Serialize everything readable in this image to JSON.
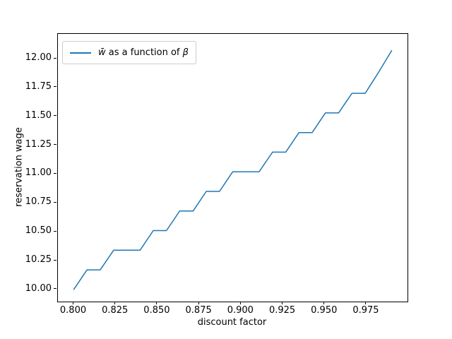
{
  "chart_data": {
    "type": "line",
    "title": "",
    "xlabel": "discount factor",
    "ylabel": "reservation wage",
    "grid": false,
    "background_color": "#ffffff",
    "line_color": "#1f77b4",
    "xlim": [
      0.7905,
      0.9995
    ],
    "ylim": [
      9.895,
      12.215
    ],
    "x_ticks": [
      "0.800",
      "0.825",
      "0.850",
      "0.875",
      "0.900",
      "0.925",
      "0.950",
      "0.975"
    ],
    "y_ticks": [
      "10.00",
      "10.25",
      "10.50",
      "10.75",
      "11.00",
      "11.25",
      "11.50",
      "11.75",
      "12.00"
    ],
    "legend": {
      "position": "upper left",
      "label_full": "w̄ as a function of β",
      "label_pre": "w̄",
      "label_mid": " as a function of ",
      "label_post": "β",
      "handle_color": "#1f77b4"
    },
    "series": [
      {
        "name": "w̄ as a function of β",
        "color": "#1f77b4",
        "x": [
          0.8,
          0.8079,
          0.8158,
          0.8238,
          0.8317,
          0.8396,
          0.8475,
          0.8554,
          0.8633,
          0.8713,
          0.8792,
          0.8871,
          0.895,
          0.9029,
          0.9108,
          0.9188,
          0.9267,
          0.9346,
          0.9425,
          0.9504,
          0.9583,
          0.9663,
          0.9742,
          0.9821,
          0.99
        ],
        "y": [
          10.0,
          10.17,
          10.17,
          10.34,
          10.34,
          10.34,
          10.51,
          10.51,
          10.68,
          10.68,
          10.85,
          10.85,
          11.02,
          11.02,
          11.02,
          11.19,
          11.19,
          11.36,
          11.36,
          11.53,
          11.53,
          11.7,
          11.7,
          11.88,
          12.07
        ]
      }
    ]
  }
}
